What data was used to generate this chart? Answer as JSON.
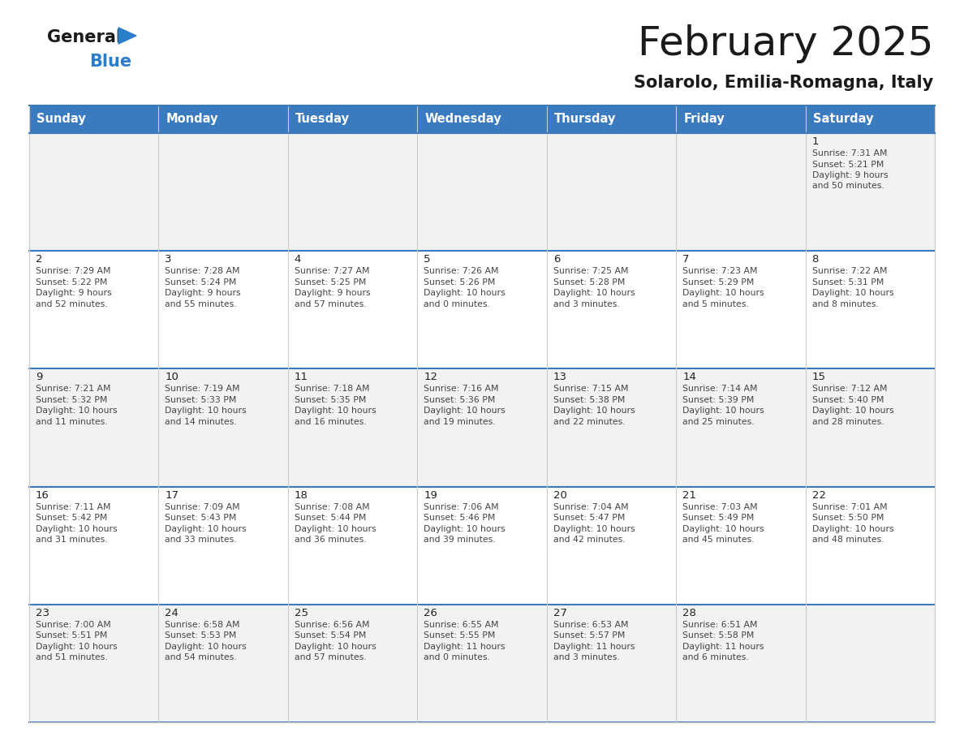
{
  "title": "February 2025",
  "subtitle": "Solarolo, Emilia-Romagna, Italy",
  "days_of_week": [
    "Sunday",
    "Monday",
    "Tuesday",
    "Wednesday",
    "Thursday",
    "Friday",
    "Saturday"
  ],
  "header_bg": "#3a7abf",
  "header_text": "#ffffff",
  "cell_bg": "#ffffff",
  "cell_text": "#333333",
  "border_color": "#3a7abf",
  "row_separator_color": "#3a7abf",
  "grid_color": "#cccccc",
  "num_cols": 7,
  "num_rows": 5,
  "calendar": [
    [
      null,
      null,
      null,
      null,
      null,
      null,
      {
        "day": 1,
        "sunrise": "7:31 AM",
        "sunset": "5:21 PM",
        "daylight": "9 hours\nand 50 minutes."
      }
    ],
    [
      {
        "day": 2,
        "sunrise": "7:29 AM",
        "sunset": "5:22 PM",
        "daylight": "9 hours\nand 52 minutes."
      },
      {
        "day": 3,
        "sunrise": "7:28 AM",
        "sunset": "5:24 PM",
        "daylight": "9 hours\nand 55 minutes."
      },
      {
        "day": 4,
        "sunrise": "7:27 AM",
        "sunset": "5:25 PM",
        "daylight": "9 hours\nand 57 minutes."
      },
      {
        "day": 5,
        "sunrise": "7:26 AM",
        "sunset": "5:26 PM",
        "daylight": "10 hours\nand 0 minutes."
      },
      {
        "day": 6,
        "sunrise": "7:25 AM",
        "sunset": "5:28 PM",
        "daylight": "10 hours\nand 3 minutes."
      },
      {
        "day": 7,
        "sunrise": "7:23 AM",
        "sunset": "5:29 PM",
        "daylight": "10 hours\nand 5 minutes."
      },
      {
        "day": 8,
        "sunrise": "7:22 AM",
        "sunset": "5:31 PM",
        "daylight": "10 hours\nand 8 minutes."
      }
    ],
    [
      {
        "day": 9,
        "sunrise": "7:21 AM",
        "sunset": "5:32 PM",
        "daylight": "10 hours\nand 11 minutes."
      },
      {
        "day": 10,
        "sunrise": "7:19 AM",
        "sunset": "5:33 PM",
        "daylight": "10 hours\nand 14 minutes."
      },
      {
        "day": 11,
        "sunrise": "7:18 AM",
        "sunset": "5:35 PM",
        "daylight": "10 hours\nand 16 minutes."
      },
      {
        "day": 12,
        "sunrise": "7:16 AM",
        "sunset": "5:36 PM",
        "daylight": "10 hours\nand 19 minutes."
      },
      {
        "day": 13,
        "sunrise": "7:15 AM",
        "sunset": "5:38 PM",
        "daylight": "10 hours\nand 22 minutes."
      },
      {
        "day": 14,
        "sunrise": "7:14 AM",
        "sunset": "5:39 PM",
        "daylight": "10 hours\nand 25 minutes."
      },
      {
        "day": 15,
        "sunrise": "7:12 AM",
        "sunset": "5:40 PM",
        "daylight": "10 hours\nand 28 minutes."
      }
    ],
    [
      {
        "day": 16,
        "sunrise": "7:11 AM",
        "sunset": "5:42 PM",
        "daylight": "10 hours\nand 31 minutes."
      },
      {
        "day": 17,
        "sunrise": "7:09 AM",
        "sunset": "5:43 PM",
        "daylight": "10 hours\nand 33 minutes."
      },
      {
        "day": 18,
        "sunrise": "7:08 AM",
        "sunset": "5:44 PM",
        "daylight": "10 hours\nand 36 minutes."
      },
      {
        "day": 19,
        "sunrise": "7:06 AM",
        "sunset": "5:46 PM",
        "daylight": "10 hours\nand 39 minutes."
      },
      {
        "day": 20,
        "sunrise": "7:04 AM",
        "sunset": "5:47 PM",
        "daylight": "10 hours\nand 42 minutes."
      },
      {
        "day": 21,
        "sunrise": "7:03 AM",
        "sunset": "5:49 PM",
        "daylight": "10 hours\nand 45 minutes."
      },
      {
        "day": 22,
        "sunrise": "7:01 AM",
        "sunset": "5:50 PM",
        "daylight": "10 hours\nand 48 minutes."
      }
    ],
    [
      {
        "day": 23,
        "sunrise": "7:00 AM",
        "sunset": "5:51 PM",
        "daylight": "10 hours\nand 51 minutes."
      },
      {
        "day": 24,
        "sunrise": "6:58 AM",
        "sunset": "5:53 PM",
        "daylight": "10 hours\nand 54 minutes."
      },
      {
        "day": 25,
        "sunrise": "6:56 AM",
        "sunset": "5:54 PM",
        "daylight": "10 hours\nand 57 minutes."
      },
      {
        "day": 26,
        "sunrise": "6:55 AM",
        "sunset": "5:55 PM",
        "daylight": "11 hours\nand 0 minutes."
      },
      {
        "day": 27,
        "sunrise": "6:53 AM",
        "sunset": "5:57 PM",
        "daylight": "11 hours\nand 3 minutes."
      },
      {
        "day": 28,
        "sunrise": "6:51 AM",
        "sunset": "5:58 PM",
        "daylight": "11 hours\nand 6 minutes."
      },
      null
    ]
  ],
  "logo_general_color": "#1a1a1a",
  "logo_blue_color": "#2a7dc9",
  "logo_triangle_color": "#2a7dc9",
  "title_fontsize": 36,
  "subtitle_fontsize": 15,
  "header_fontsize": 10.5,
  "day_num_fontsize": 9.5,
  "cell_info_fontsize": 7.8,
  "fig_bg": "#ffffff"
}
